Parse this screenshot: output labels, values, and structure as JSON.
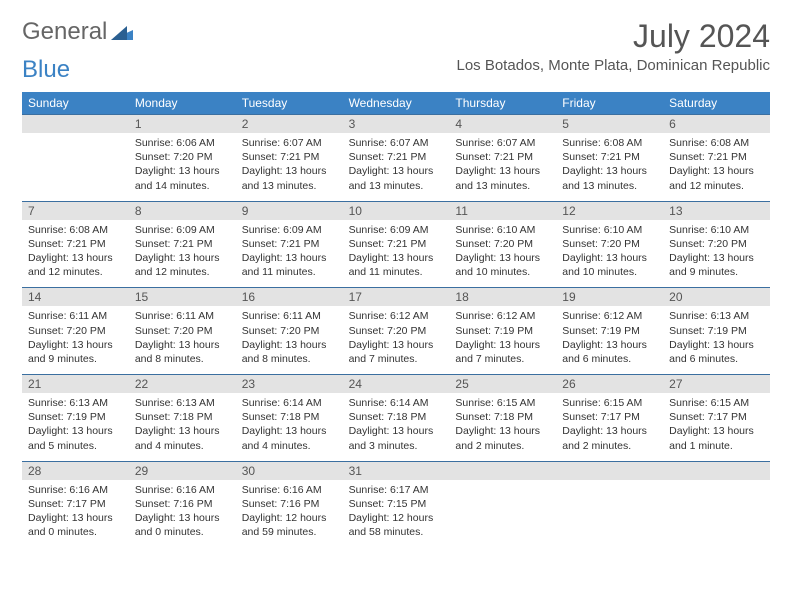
{
  "brand": {
    "part1": "General",
    "part2": "Blue"
  },
  "title": "July 2024",
  "location": "Los Botados, Monte Plata, Dominican Republic",
  "colors": {
    "header_bg": "#3b82c4",
    "header_text": "#ffffff",
    "daynum_bg": "#e3e3e3",
    "text": "#333333",
    "brand_blue": "#3b82c4",
    "rule": "#3b6fa0"
  },
  "day_headers": [
    "Sunday",
    "Monday",
    "Tuesday",
    "Wednesday",
    "Thursday",
    "Friday",
    "Saturday"
  ],
  "weeks": [
    [
      {
        "n": "",
        "sr": "",
        "ss": "",
        "dl": ""
      },
      {
        "n": "1",
        "sr": "Sunrise: 6:06 AM",
        "ss": "Sunset: 7:20 PM",
        "dl": "Daylight: 13 hours and 14 minutes."
      },
      {
        "n": "2",
        "sr": "Sunrise: 6:07 AM",
        "ss": "Sunset: 7:21 PM",
        "dl": "Daylight: 13 hours and 13 minutes."
      },
      {
        "n": "3",
        "sr": "Sunrise: 6:07 AM",
        "ss": "Sunset: 7:21 PM",
        "dl": "Daylight: 13 hours and 13 minutes."
      },
      {
        "n": "4",
        "sr": "Sunrise: 6:07 AM",
        "ss": "Sunset: 7:21 PM",
        "dl": "Daylight: 13 hours and 13 minutes."
      },
      {
        "n": "5",
        "sr": "Sunrise: 6:08 AM",
        "ss": "Sunset: 7:21 PM",
        "dl": "Daylight: 13 hours and 13 minutes."
      },
      {
        "n": "6",
        "sr": "Sunrise: 6:08 AM",
        "ss": "Sunset: 7:21 PM",
        "dl": "Daylight: 13 hours and 12 minutes."
      }
    ],
    [
      {
        "n": "7",
        "sr": "Sunrise: 6:08 AM",
        "ss": "Sunset: 7:21 PM",
        "dl": "Daylight: 13 hours and 12 minutes."
      },
      {
        "n": "8",
        "sr": "Sunrise: 6:09 AM",
        "ss": "Sunset: 7:21 PM",
        "dl": "Daylight: 13 hours and 12 minutes."
      },
      {
        "n": "9",
        "sr": "Sunrise: 6:09 AM",
        "ss": "Sunset: 7:21 PM",
        "dl": "Daylight: 13 hours and 11 minutes."
      },
      {
        "n": "10",
        "sr": "Sunrise: 6:09 AM",
        "ss": "Sunset: 7:21 PM",
        "dl": "Daylight: 13 hours and 11 minutes."
      },
      {
        "n": "11",
        "sr": "Sunrise: 6:10 AM",
        "ss": "Sunset: 7:20 PM",
        "dl": "Daylight: 13 hours and 10 minutes."
      },
      {
        "n": "12",
        "sr": "Sunrise: 6:10 AM",
        "ss": "Sunset: 7:20 PM",
        "dl": "Daylight: 13 hours and 10 minutes."
      },
      {
        "n": "13",
        "sr": "Sunrise: 6:10 AM",
        "ss": "Sunset: 7:20 PM",
        "dl": "Daylight: 13 hours and 9 minutes."
      }
    ],
    [
      {
        "n": "14",
        "sr": "Sunrise: 6:11 AM",
        "ss": "Sunset: 7:20 PM",
        "dl": "Daylight: 13 hours and 9 minutes."
      },
      {
        "n": "15",
        "sr": "Sunrise: 6:11 AM",
        "ss": "Sunset: 7:20 PM",
        "dl": "Daylight: 13 hours and 8 minutes."
      },
      {
        "n": "16",
        "sr": "Sunrise: 6:11 AM",
        "ss": "Sunset: 7:20 PM",
        "dl": "Daylight: 13 hours and 8 minutes."
      },
      {
        "n": "17",
        "sr": "Sunrise: 6:12 AM",
        "ss": "Sunset: 7:20 PM",
        "dl": "Daylight: 13 hours and 7 minutes."
      },
      {
        "n": "18",
        "sr": "Sunrise: 6:12 AM",
        "ss": "Sunset: 7:19 PM",
        "dl": "Daylight: 13 hours and 7 minutes."
      },
      {
        "n": "19",
        "sr": "Sunrise: 6:12 AM",
        "ss": "Sunset: 7:19 PM",
        "dl": "Daylight: 13 hours and 6 minutes."
      },
      {
        "n": "20",
        "sr": "Sunrise: 6:13 AM",
        "ss": "Sunset: 7:19 PM",
        "dl": "Daylight: 13 hours and 6 minutes."
      }
    ],
    [
      {
        "n": "21",
        "sr": "Sunrise: 6:13 AM",
        "ss": "Sunset: 7:19 PM",
        "dl": "Daylight: 13 hours and 5 minutes."
      },
      {
        "n": "22",
        "sr": "Sunrise: 6:13 AM",
        "ss": "Sunset: 7:18 PM",
        "dl": "Daylight: 13 hours and 4 minutes."
      },
      {
        "n": "23",
        "sr": "Sunrise: 6:14 AM",
        "ss": "Sunset: 7:18 PM",
        "dl": "Daylight: 13 hours and 4 minutes."
      },
      {
        "n": "24",
        "sr": "Sunrise: 6:14 AM",
        "ss": "Sunset: 7:18 PM",
        "dl": "Daylight: 13 hours and 3 minutes."
      },
      {
        "n": "25",
        "sr": "Sunrise: 6:15 AM",
        "ss": "Sunset: 7:18 PM",
        "dl": "Daylight: 13 hours and 2 minutes."
      },
      {
        "n": "26",
        "sr": "Sunrise: 6:15 AM",
        "ss": "Sunset: 7:17 PM",
        "dl": "Daylight: 13 hours and 2 minutes."
      },
      {
        "n": "27",
        "sr": "Sunrise: 6:15 AM",
        "ss": "Sunset: 7:17 PM",
        "dl": "Daylight: 13 hours and 1 minute."
      }
    ],
    [
      {
        "n": "28",
        "sr": "Sunrise: 6:16 AM",
        "ss": "Sunset: 7:17 PM",
        "dl": "Daylight: 13 hours and 0 minutes."
      },
      {
        "n": "29",
        "sr": "Sunrise: 6:16 AM",
        "ss": "Sunset: 7:16 PM",
        "dl": "Daylight: 13 hours and 0 minutes."
      },
      {
        "n": "30",
        "sr": "Sunrise: 6:16 AM",
        "ss": "Sunset: 7:16 PM",
        "dl": "Daylight: 12 hours and 59 minutes."
      },
      {
        "n": "31",
        "sr": "Sunrise: 6:17 AM",
        "ss": "Sunset: 7:15 PM",
        "dl": "Daylight: 12 hours and 58 minutes."
      },
      {
        "n": "",
        "sr": "",
        "ss": "",
        "dl": ""
      },
      {
        "n": "",
        "sr": "",
        "ss": "",
        "dl": ""
      },
      {
        "n": "",
        "sr": "",
        "ss": "",
        "dl": ""
      }
    ]
  ]
}
